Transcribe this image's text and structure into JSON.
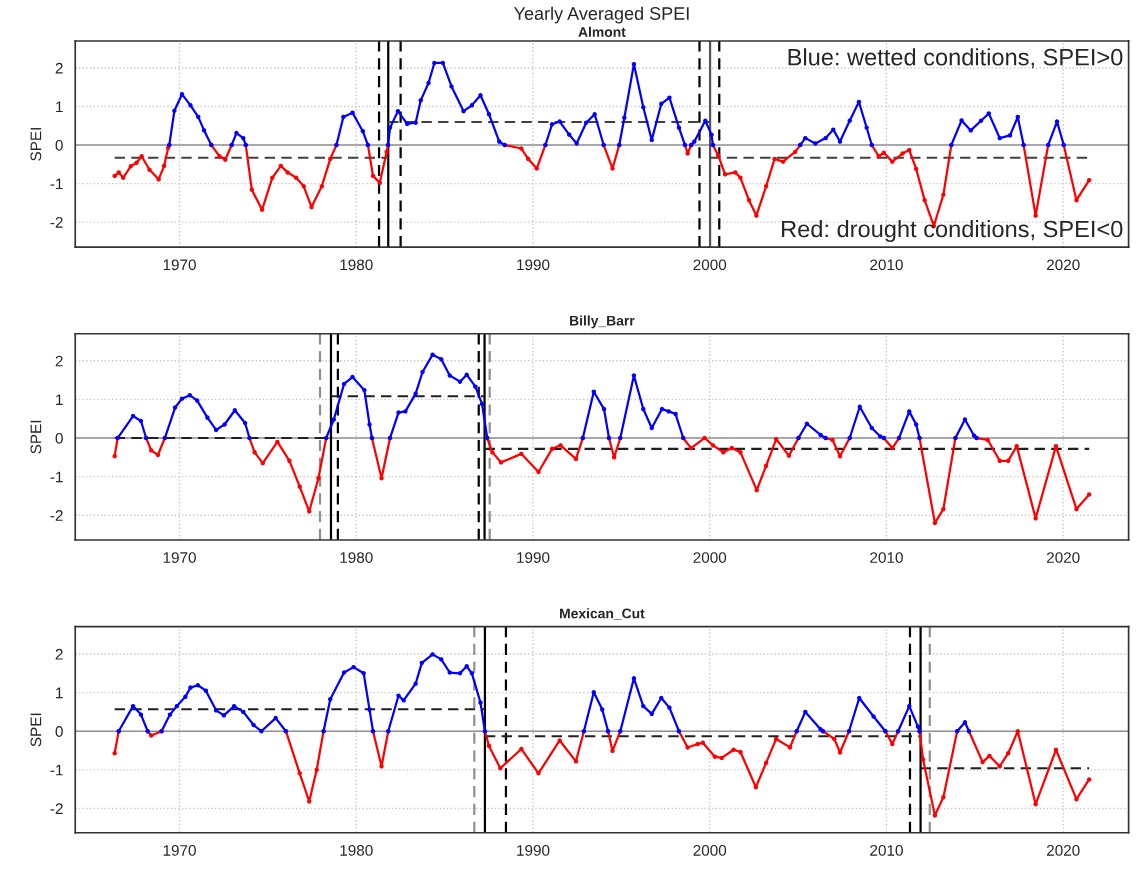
{
  "chart_data": [
    {
      "type": "line",
      "title": "Yearly Averaged SPEI",
      "subtitle": "Almont",
      "ylabel": "SPEI",
      "xlim": [
        1964.1,
        2023.7
      ],
      "xticks": [
        1970,
        1980,
        1990,
        2000,
        2010,
        2020
      ],
      "ylim": [
        -2.65,
        2.7
      ],
      "yticks": [
        -2,
        -1,
        0,
        1,
        2
      ],
      "grid": true,
      "marker": "circle",
      "line_style": "solid",
      "annotations": [
        "Blue: wetted conditions, SPEI>0",
        "Red: drought conditions, SPEI<0"
      ],
      "series": [
        {
          "color": "#ff0000",
          "x": [
            1966.33,
            1966.56,
            1966.81,
            1967.24,
            1967.57,
            1967.86,
            1968.3,
            1968.82,
            1969.13,
            1969.36,
            1969.42,
            null,
            1971.8,
            1972.26,
            1972.59,
            1972.95,
            null,
            1973.75,
            1974.09,
            1974.67,
            1975.25,
            1975.73,
            1976.12,
            1976.6,
            1977.03,
            1977.47,
            1978.05,
            1978.53,
            1978.88,
            null,
            1980.66,
            1980.95,
            1981.33,
            1981.72,
            1981.8,
            null,
            1988.4,
            1989.34,
            1989.73,
            1990.21,
            1990.7,
            null,
            1994.0,
            1994.5,
            1994.88,
            null,
            1998.6,
            1998.75,
            1998.95,
            null,
            2000.18,
            2000.48,
            2000.87,
            2001.45,
            2001.74,
            2002.22,
            2002.64,
            2003.19,
            2003.67,
            2004.15,
            2004.83,
            2005.12,
            null,
            2009.17,
            2009.56,
            2009.85,
            2010.33,
            2010.91,
            2011.29,
            2011.68,
            2012.16,
            2012.68,
            2013.22,
            2013.67,
            null,
            2017.76,
            2018.44,
            2019.15,
            null,
            2020.03,
            2020.75,
            2021.47
          ],
          "values": [
            -0.8,
            -0.71,
            -0.85,
            -0.55,
            -0.46,
            -0.29,
            -0.64,
            -0.89,
            -0.54,
            -0.07,
            0,
            null,
            0,
            -0.29,
            -0.38,
            0,
            null,
            0,
            -1.16,
            -1.68,
            -0.85,
            -0.54,
            -0.71,
            -0.85,
            -1.07,
            -1.61,
            -1.07,
            -0.36,
            0,
            null,
            0,
            -0.8,
            -0.98,
            -0.18,
            0,
            null,
            0,
            -0.09,
            -0.36,
            -0.61,
            0,
            null,
            0,
            -0.61,
            0,
            null,
            0,
            -0.22,
            0,
            null,
            0,
            -0.27,
            -0.76,
            -0.71,
            -0.85,
            -1.43,
            -1.83,
            -1.07,
            -0.36,
            -0.43,
            -0.18,
            0,
            null,
            0,
            -0.29,
            -0.2,
            -0.43,
            -0.22,
            -0.13,
            -0.62,
            -1.43,
            -2.1,
            -1.29,
            0,
            null,
            0,
            -1.83,
            0,
            null,
            0,
            -1.43,
            -0.91
          ]
        },
        {
          "color": "#0000ff",
          "x": [
            1969.42,
            1969.71,
            1970.14,
            1970.62,
            1971.06,
            1971.39,
            1971.8,
            null,
            1972.95,
            1973.22,
            1973.61,
            1973.75,
            null,
            1978.88,
            1979.27,
            1979.79,
            1980.37,
            1980.66,
            null,
            1981.8,
            1981.91,
            1982.36,
            1982.88,
            1983.36,
            1983.65,
            1984.09,
            1984.42,
            1984.9,
            1985.39,
            1986.07,
            1986.54,
            1987.03,
            1987.51,
            1988.09,
            1988.4,
            null,
            1990.7,
            1991.08,
            1991.51,
            1992.05,
            1992.47,
            1993.01,
            1993.49,
            1994.0,
            null,
            1994.88,
            1995.17,
            1995.71,
            1996.24,
            1996.72,
            1997.26,
            1997.72,
            1998.26,
            1998.6,
            null,
            1998.95,
            1999.13,
            1999.75,
            2000.1,
            2000.18,
            null,
            2005.12,
            2005.41,
            2005.98,
            2006.56,
            2006.99,
            2007.37,
            2007.92,
            2008.44,
            2008.88,
            2009.17,
            null,
            2013.67,
            2014.25,
            2014.77,
            2015.35,
            2015.79,
            2016.41,
            2016.99,
            2017.43,
            2017.76,
            null,
            2019.15,
            2019.65,
            2020.03
          ],
          "values": [
            0,
            0.89,
            1.32,
            1.03,
            0.73,
            0.38,
            0,
            null,
            0,
            0.31,
            0.18,
            0,
            null,
            0,
            0.73,
            0.84,
            0.36,
            0,
            null,
            0,
            0.45,
            0.88,
            0.55,
            0.58,
            1.16,
            1.61,
            2.13,
            2.13,
            1.52,
            0.88,
            1.03,
            1.29,
            0.8,
            0.09,
            0,
            null,
            0,
            0.54,
            0.61,
            0.27,
            0.04,
            0.58,
            0.8,
            0,
            null,
            0,
            0.71,
            2.1,
            0.98,
            0.13,
            1.07,
            1.23,
            0.45,
            0,
            null,
            0,
            0.09,
            0.63,
            0.27,
            0,
            null,
            0,
            0.18,
            0.04,
            0.18,
            0.4,
            0.09,
            0.63,
            1.12,
            0.45,
            0,
            null,
            0,
            0.64,
            0.38,
            0.63,
            0.82,
            0.18,
            0.25,
            0.73,
            0,
            null,
            0,
            0.61,
            0
          ]
        },
        {
          "type": "line",
          "color": "#404040",
          "line_style": "dashed",
          "marker": "none",
          "x": [
            1966.33,
            1981.8,
            null,
            1981.8,
            2000.02,
            null,
            2000.02,
            2021.47
          ],
          "values": [
            -0.33,
            -0.33,
            null,
            0.6,
            0.6,
            null,
            -0.33,
            -0.33
          ]
        }
      ],
      "ref_lines": [
        {
          "axis": "y",
          "value": 0,
          "color": "#909090",
          "line_style": "solid"
        },
        {
          "axis": "x",
          "value": 1981.29,
          "color": "#000000",
          "line_style": "dashed"
        },
        {
          "axis": "x",
          "value": 1981.81,
          "color": "#000000",
          "line_style": "solid"
        },
        {
          "axis": "x",
          "value": 1982.51,
          "color": "#000000",
          "line_style": "dashed"
        },
        {
          "axis": "x",
          "value": 1999.42,
          "color": "#000000",
          "line_style": "dashed"
        },
        {
          "axis": "x",
          "value": 2000.02,
          "color": "#555555",
          "line_style": "solid"
        },
        {
          "axis": "x",
          "value": 2000.54,
          "color": "#000000",
          "line_style": "dashed"
        }
      ]
    },
    {
      "type": "line",
      "title": "Billy_Barr",
      "ylabel": "SPEI",
      "xlim": [
        1964.1,
        2023.7
      ],
      "xticks": [
        1970,
        1980,
        1990,
        2000,
        2010,
        2020
      ],
      "ylim": [
        -2.64,
        2.7
      ],
      "yticks": [
        -2,
        -1,
        0,
        1,
        2
      ],
      "grid": true,
      "marker": "circle",
      "line_style": "solid",
      "series": [
        {
          "color": "#ff0000",
          "x": [
            1966.33,
            1966.5,
            null,
            1968.11,
            1968.4,
            1968.78,
            1969.17,
            null,
            1973.96,
            1974.25,
            1974.71,
            1975.54,
            1976.22,
            1976.8,
            1977.34,
            1977.86,
            1978.3,
            null,
            1980.89,
            1981.43,
            1981.91,
            null,
            1987.41,
            1987.7,
            1988.19,
            1989.34,
            1990.31,
            1991.08,
            1991.56,
            1992.43,
            1992.82,
            null,
            1994.3,
            1994.59,
            1994.94,
            null,
            1998.5,
            1998.94,
            1999.71,
            2000.19,
            2000.77,
            2001.25,
            2001.74,
            2002.66,
            2003.19,
            2003.76,
            2004.48,
            2005.02,
            null,
            2006.56,
            2006.95,
            2007.37,
            2007.92,
            null,
            2009.85,
            2010.33,
            2010.71,
            null,
            2011.87,
            2012.74,
            2013.22,
            2013.9,
            null,
            2015.1,
            2015.73,
            2016.41,
            2016.89,
            2017.37,
            2018.44,
            2019.59,
            2020.75,
            2021.47
          ],
          "values": [
            -0.47,
            0,
            null,
            0,
            -0.32,
            -0.44,
            0,
            null,
            0,
            -0.37,
            -0.65,
            -0.1,
            -0.59,
            -1.26,
            -1.9,
            -1.04,
            0,
            null,
            0,
            -1.04,
            0,
            null,
            0,
            -0.37,
            -0.63,
            -0.41,
            -0.88,
            -0.28,
            -0.19,
            -0.54,
            0,
            null,
            0,
            -0.5,
            0,
            null,
            0,
            -0.26,
            0,
            -0.19,
            -0.37,
            -0.26,
            -0.37,
            -1.35,
            -0.72,
            -0.03,
            -0.46,
            0,
            null,
            0,
            -0.05,
            -0.47,
            0,
            null,
            0,
            -0.26,
            0,
            null,
            0,
            -2.2,
            -1.84,
            0,
            null,
            0,
            -0.05,
            -0.59,
            -0.59,
            -0.21,
            -2.08,
            -0.21,
            -1.84,
            -1.46
          ]
        },
        {
          "color": "#0000ff",
          "x": [
            1966.5,
            1967.37,
            1967.82,
            1968.11,
            null,
            1969.17,
            1969.75,
            1970.14,
            1970.58,
            1971.0,
            1971.58,
            1972.07,
            1972.55,
            1973.13,
            1973.71,
            1973.96,
            null,
            1978.3,
            1978.73,
            1979.31,
            1979.79,
            1980.46,
            1980.75,
            1980.89,
            null,
            1981.91,
            1982.39,
            1982.78,
            1983.36,
            1983.75,
            1984.32,
            1984.81,
            1985.29,
            1985.87,
            1986.25,
            1986.74,
            1987.12,
            1987.41,
            null,
            1992.82,
            1993.44,
            1994.02,
            1994.3,
            null,
            1994.94,
            1995.71,
            1996.24,
            1996.72,
            1997.3,
            1997.68,
            1998.07,
            1998.5,
            null,
            2005.02,
            2005.5,
            2006.27,
            2006.56,
            null,
            2007.92,
            2008.49,
            2009.17,
            2009.65,
            2009.85,
            null,
            2010.71,
            2011.29,
            2011.68,
            2011.87,
            null,
            2013.9,
            2014.44,
            2014.96,
            2015.1
          ],
          "values": [
            0,
            0.57,
            0.44,
            0,
            null,
            0,
            0.79,
            1.02,
            1.11,
            0.97,
            0.53,
            0.21,
            0.35,
            0.72,
            0.39,
            0,
            null,
            0,
            0.48,
            1.4,
            1.58,
            1.24,
            0.35,
            0,
            null,
            0,
            0.66,
            0.69,
            1.15,
            1.71,
            2.16,
            2.04,
            1.62,
            1.46,
            1.64,
            1.33,
            0.88,
            0,
            null,
            0,
            1.2,
            0.75,
            0,
            null,
            0,
            1.62,
            0.75,
            0.26,
            0.75,
            0.69,
            0.62,
            0,
            null,
            0,
            0.37,
            0.08,
            0,
            null,
            0,
            0.81,
            0.26,
            0.04,
            0,
            null,
            0,
            0.69,
            0.35,
            0,
            null,
            0,
            0.48,
            0.06,
            0
          ]
        },
        {
          "type": "line",
          "color": "#202020",
          "line_style": "dashed",
          "marker": "none",
          "x": [
            1966.33,
            1978.57,
            null,
            1978.57,
            1987.26,
            null,
            1987.26,
            2021.47
          ],
          "values": [
            0.0,
            0.0,
            null,
            1.08,
            1.08,
            null,
            -0.28,
            -0.28
          ]
        }
      ],
      "ref_lines": [
        {
          "axis": "y",
          "value": 0,
          "color": "#909090",
          "line_style": "solid"
        },
        {
          "axis": "x",
          "value": 1977.95,
          "color": "#909090",
          "line_style": "dashed"
        },
        {
          "axis": "x",
          "value": 1978.57,
          "color": "#000000",
          "line_style": "solid"
        },
        {
          "axis": "x",
          "value": 1978.96,
          "color": "#000000",
          "line_style": "dashed"
        },
        {
          "axis": "x",
          "value": 1986.93,
          "color": "#000000",
          "line_style": "dashed"
        },
        {
          "axis": "x",
          "value": 1987.26,
          "color": "#000000",
          "line_style": "solid"
        },
        {
          "axis": "x",
          "value": 1987.55,
          "color": "#909090",
          "line_style": "dashed"
        }
      ]
    },
    {
      "type": "line",
      "title": "Mexican_Cut",
      "ylabel": "SPEI",
      "xlim": [
        1964.1,
        2023.7
      ],
      "xticks": [
        1970,
        1980,
        1990,
        2000,
        2010,
        2020
      ],
      "ylim": [
        -2.63,
        2.71
      ],
      "yticks": [
        -2,
        -1,
        0,
        1,
        2
      ],
      "grid": true,
      "marker": "circle",
      "line_style": "solid",
      "series": [
        {
          "color": "#ff0000",
          "x": [
            1966.33,
            1966.56,
            null,
            1968.2,
            1968.4,
            1968.98,
            null,
            1976.02,
            1976.8,
            1977.34,
            1977.76,
            1978.15,
            null,
            1980.95,
            1981.43,
            1981.81,
            null,
            1987.28,
            1987.51,
            1988.15,
            1989.34,
            1990.31,
            1991.51,
            1992.43,
            1992.88,
            null,
            1994.25,
            1994.5,
            1994.94,
            null,
            1998.26,
            1998.75,
            1999.32,
            1999.61,
            2000.29,
            2000.68,
            2001.35,
            2001.74,
            2002.61,
            2003.19,
            2003.76,
            2004.54,
            2004.92,
            null,
            2006.41,
            2007.05,
            2007.37,
            2007.88,
            null,
            2009.94,
            2010.33,
            2010.66,
            null,
            2011.87,
            2012.07,
            2012.74,
            2013.22,
            2014.0,
            null,
            2014.67,
            2015.44,
            2015.83,
            2016.41,
            2016.89,
            2017.43,
            2018.44,
            2019.59,
            2020.75,
            2021.47
          ],
          "values": [
            -0.57,
            0,
            null,
            0,
            -0.11,
            0,
            null,
            0,
            -1.09,
            -1.82,
            -1.0,
            0,
            null,
            0,
            -0.91,
            0,
            null,
            0,
            -0.38,
            -0.96,
            -0.46,
            -1.09,
            -0.24,
            -0.78,
            0,
            null,
            0,
            -0.51,
            0,
            null,
            0,
            -0.42,
            -0.33,
            -0.3,
            -0.66,
            -0.69,
            -0.48,
            -0.54,
            -1.45,
            -0.82,
            -0.2,
            -0.42,
            0,
            null,
            0,
            -0.2,
            -0.55,
            0,
            null,
            0,
            -0.33,
            0,
            null,
            0,
            -0.73,
            -2.18,
            -1.71,
            0,
            null,
            0,
            -0.8,
            -0.64,
            -0.91,
            -0.57,
            0,
            -1.89,
            -0.48,
            -1.76,
            -1.25
          ]
        },
        {
          "color": "#0000ff",
          "x": [
            1966.56,
            1967.37,
            1967.82,
            1968.2,
            null,
            1968.98,
            1969.46,
            1969.85,
            1970.33,
            1970.62,
            1971.04,
            1971.49,
            1972.07,
            1972.51,
            1973.09,
            1973.61,
            1974.19,
            1974.63,
            1975.44,
            1976.02,
            null,
            1978.15,
            1978.53,
            1979.31,
            1979.85,
            1980.42,
            1980.75,
            1980.95,
            null,
            1981.81,
            1982.39,
            1982.68,
            1983.36,
            1983.71,
            1984.32,
            1984.81,
            1985.29,
            1985.87,
            1986.25,
            1986.54,
            1987.03,
            1987.28,
            null,
            1992.88,
            1993.44,
            1993.92,
            1994.25,
            null,
            1994.94,
            1995.71,
            1996.24,
            1996.72,
            1997.26,
            1997.72,
            1998.26,
            null,
            2004.92,
            2005.41,
            2006.27,
            2006.41,
            null,
            2007.88,
            2008.46,
            2009.27,
            2009.94,
            null,
            2010.66,
            2011.29,
            2011.78,
            2011.87,
            null,
            2014.0,
            2014.44,
            2014.67
          ],
          "values": [
            0,
            0.65,
            0.43,
            0,
            null,
            0,
            0.43,
            0.65,
            0.89,
            1.13,
            1.19,
            1.05,
            0.54,
            0.41,
            0.65,
            0.5,
            0.16,
            0,
            0.34,
            0,
            null,
            0,
            0.83,
            1.52,
            1.66,
            1.5,
            0.56,
            0,
            null,
            0,
            0.92,
            0.8,
            1.23,
            1.77,
            1.99,
            1.86,
            1.52,
            1.5,
            1.68,
            1.5,
            0.74,
            0,
            null,
            0,
            1.01,
            0.56,
            0,
            null,
            0,
            1.37,
            0.65,
            0.45,
            0.86,
            0.61,
            0,
            null,
            0,
            0.5,
            0.05,
            0,
            null,
            0,
            0.86,
            0.38,
            0,
            null,
            0,
            0.65,
            0.12,
            0,
            null,
            0,
            0.23,
            0
          ]
        },
        {
          "type": "line",
          "color": "#202020",
          "line_style": "dashed",
          "marker": "none",
          "x": [
            1966.33,
            1987.28,
            null,
            1987.28,
            2011.93,
            null,
            2011.93,
            2021.47
          ],
          "values": [
            0.57,
            0.57,
            null,
            -0.13,
            -0.13,
            null,
            -0.96,
            -0.96
          ]
        }
      ],
      "ref_lines": [
        {
          "axis": "y",
          "value": 0,
          "color": "#909090",
          "line_style": "solid"
        },
        {
          "axis": "x",
          "value": 1986.68,
          "color": "#909090",
          "line_style": "dashed"
        },
        {
          "axis": "x",
          "value": 1987.28,
          "color": "#000000",
          "line_style": "solid"
        },
        {
          "axis": "x",
          "value": 1988.47,
          "color": "#000000",
          "line_style": "dashed"
        },
        {
          "axis": "x",
          "value": 2011.33,
          "color": "#000000",
          "line_style": "dashed"
        },
        {
          "axis": "x",
          "value": 2011.93,
          "color": "#000000",
          "line_style": "solid"
        },
        {
          "axis": "x",
          "value": 2012.45,
          "color": "#909090",
          "line_style": "dashed"
        }
      ]
    }
  ]
}
